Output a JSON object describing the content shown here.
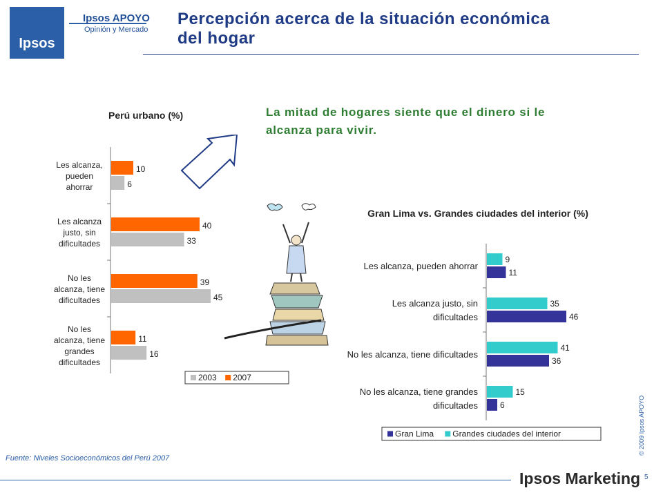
{
  "header": {
    "brand_name": "Ipsos APOYO",
    "brand_subtitle": "Opinión y Mercado",
    "logo_text": "Ipsos",
    "title": "Percepción acerca de la situación económica del hogar"
  },
  "headline": "La mitad de hogares siente que el dinero si le alcanza para vivir.",
  "footer": {
    "source": "Fuente: Niveles Socioeconómicos del Perú 2007",
    "brand": "Ipsos Marketing",
    "copyright": "© 2009 Ipsos APOYO",
    "page_number": "5"
  },
  "colors": {
    "brand_blue": "#1f3b86",
    "headline_green": "#2e7d32",
    "series_2003": "#c0c0c0",
    "series_2007": "#ff6600",
    "series_lima": "#333399",
    "series_interior": "#33cccc"
  },
  "chart_data": [
    {
      "type": "bar",
      "orientation": "horizontal",
      "title": "Perú urbano (%)",
      "categories": [
        [
          "Les alcanza,",
          "pueden",
          "ahorrar"
        ],
        [
          "Les alcanza",
          "justo, sin",
          "dificultades"
        ],
        [
          "No les",
          "alcanza, tiene",
          "dificultades"
        ],
        [
          "No les",
          "alcanza, tiene",
          "grandes",
          "dificultades"
        ]
      ],
      "series": [
        {
          "name": "2007",
          "values": [
            10,
            40,
            39,
            11
          ]
        },
        {
          "name": "2003",
          "values": [
            6,
            33,
            45,
            16
          ]
        }
      ],
      "legend": [
        "2003",
        "2007"
      ],
      "legend_position": "bottom-right",
      "data_labels": true
    },
    {
      "type": "bar",
      "orientation": "horizontal",
      "title": "Gran Lima vs. Grandes ciudades del interior (%)",
      "categories": [
        [
          "Les alcanza, pueden ahorrar"
        ],
        [
          "Les alcanza justo, sin",
          "dificultades"
        ],
        [
          "No les alcanza, tiene dificultades"
        ],
        [
          "No les alcanza, tiene grandes",
          "dificultades"
        ]
      ],
      "series": [
        {
          "name": "Grandes ciudades del interior",
          "values": [
            9,
            35,
            41,
            15
          ]
        },
        {
          "name": "Gran Lima",
          "values": [
            11,
            46,
            36,
            6
          ]
        }
      ],
      "legend": [
        "Gran Lima",
        "Grandes ciudades del interior"
      ],
      "legend_position": "bottom",
      "data_labels": true
    }
  ]
}
